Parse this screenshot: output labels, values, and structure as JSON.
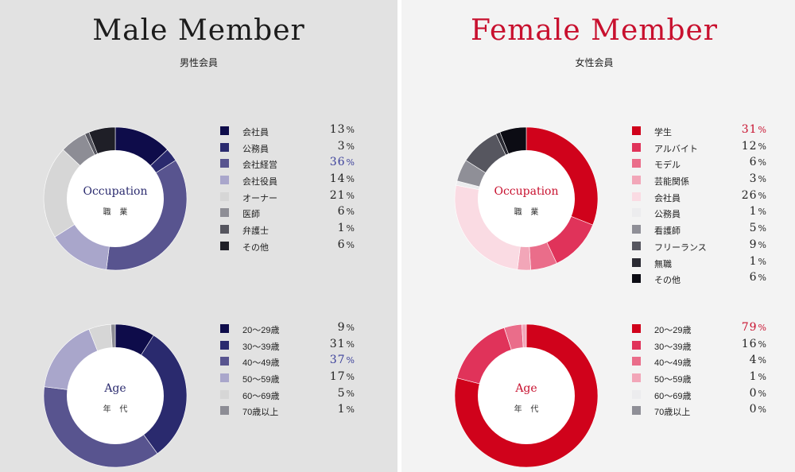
{
  "male": {
    "title": "Male Member",
    "subtitle": "男性会員",
    "occupation": {
      "label": "Occupation",
      "sublabel": "職 業",
      "highlight_index": 2,
      "items": [
        {
          "name": "会社員",
          "value": 13,
          "color": "#0e0c4a"
        },
        {
          "name": "公務員",
          "value": 3,
          "color": "#2a2a6e"
        },
        {
          "name": "会社経営",
          "value": 36,
          "color": "#58548f"
        },
        {
          "name": "会社役員",
          "value": 14,
          "color": "#a9a6cb"
        },
        {
          "name": "オーナー",
          "value": 21,
          "color": "#d6d6d6"
        },
        {
          "name": "医師",
          "value": 6,
          "color": "#8d8d95"
        },
        {
          "name": "弁護士",
          "value": 1,
          "color": "#55555e"
        },
        {
          "name": "その他",
          "value": 6,
          "color": "#1f1f27"
        }
      ]
    },
    "age": {
      "label": "Age",
      "sublabel": "年 代",
      "highlight_index": 2,
      "items": [
        {
          "name": "20～29歳",
          "value": 9,
          "color": "#0e0c4a"
        },
        {
          "name": "30～39歳",
          "value": 31,
          "color": "#2a2a6e"
        },
        {
          "name": "40～49歳",
          "value": 37,
          "color": "#58548f"
        },
        {
          "name": "50～59歳",
          "value": 17,
          "color": "#a9a6cb"
        },
        {
          "name": "60～69歳",
          "value": 5,
          "color": "#d6d6d6"
        },
        {
          "name": "70歳以上",
          "value": 1,
          "color": "#8d8d95"
        }
      ]
    }
  },
  "female": {
    "title": "Female Member",
    "subtitle": "女性会員",
    "occupation": {
      "label": "Occupation",
      "sublabel": "職 業",
      "highlight_index": 0,
      "items": [
        {
          "name": "学生",
          "value": 31,
          "color": "#d0021b"
        },
        {
          "name": "アルバイト",
          "value": 12,
          "color": "#e0335a"
        },
        {
          "name": "モデル",
          "value": 6,
          "color": "#ea6d8a"
        },
        {
          "name": "芸能関係",
          "value": 3,
          "color": "#f2a6b8"
        },
        {
          "name": "会社員",
          "value": 26,
          "color": "#fadbe3"
        },
        {
          "name": "公務員",
          "value": 1,
          "color": "#ececee"
        },
        {
          "name": "看護師",
          "value": 5,
          "color": "#8f8f97"
        },
        {
          "name": "フリーランス",
          "value": 9,
          "color": "#56565f"
        },
        {
          "name": "無職",
          "value": 1,
          "color": "#2a2a33"
        },
        {
          "name": "その他",
          "value": 6,
          "color": "#0c0c14"
        }
      ]
    },
    "age": {
      "label": "Age",
      "sublabel": "年 代",
      "highlight_index": 0,
      "items": [
        {
          "name": "20～29歳",
          "value": 79,
          "color": "#d0021b"
        },
        {
          "name": "30～39歳",
          "value": 16,
          "color": "#e0335a"
        },
        {
          "name": "40～49歳",
          "value": 4,
          "color": "#ea6d8a"
        },
        {
          "name": "50～59歳",
          "value": 1,
          "color": "#f2a6b8"
        },
        {
          "name": "60～69歳",
          "value": 0,
          "color": "#ececee"
        },
        {
          "name": "70歳以上",
          "value": 0,
          "color": "#8f8f97"
        }
      ]
    }
  },
  "percent_sign": "%",
  "chart_data": [
    {
      "type": "pie",
      "title": "Occupation",
      "group": "Male Member",
      "categories": [
        "会社員",
        "公務員",
        "会社経営",
        "会社役員",
        "オーナー",
        "医師",
        "弁護士",
        "その他"
      ],
      "values": [
        13,
        3,
        36,
        14,
        21,
        6,
        1,
        6
      ]
    },
    {
      "type": "pie",
      "title": "Age",
      "group": "Male Member",
      "categories": [
        "20～29歳",
        "30～39歳",
        "40～49歳",
        "50～59歳",
        "60～69歳",
        "70歳以上"
      ],
      "values": [
        9,
        31,
        37,
        17,
        5,
        1
      ]
    },
    {
      "type": "pie",
      "title": "Occupation",
      "group": "Female Member",
      "categories": [
        "学生",
        "アルバイト",
        "モデル",
        "芸能関係",
        "会社員",
        "公務員",
        "看護師",
        "フリーランス",
        "無職",
        "その他"
      ],
      "values": [
        31,
        12,
        6,
        3,
        26,
        1,
        5,
        9,
        1,
        6
      ]
    },
    {
      "type": "pie",
      "title": "Age",
      "group": "Female Member",
      "categories": [
        "20～29歳",
        "30～39歳",
        "40～49歳",
        "50～59歳",
        "60～69歳",
        "70歳以上"
      ],
      "values": [
        79,
        16,
        4,
        1,
        0,
        0
      ]
    }
  ]
}
